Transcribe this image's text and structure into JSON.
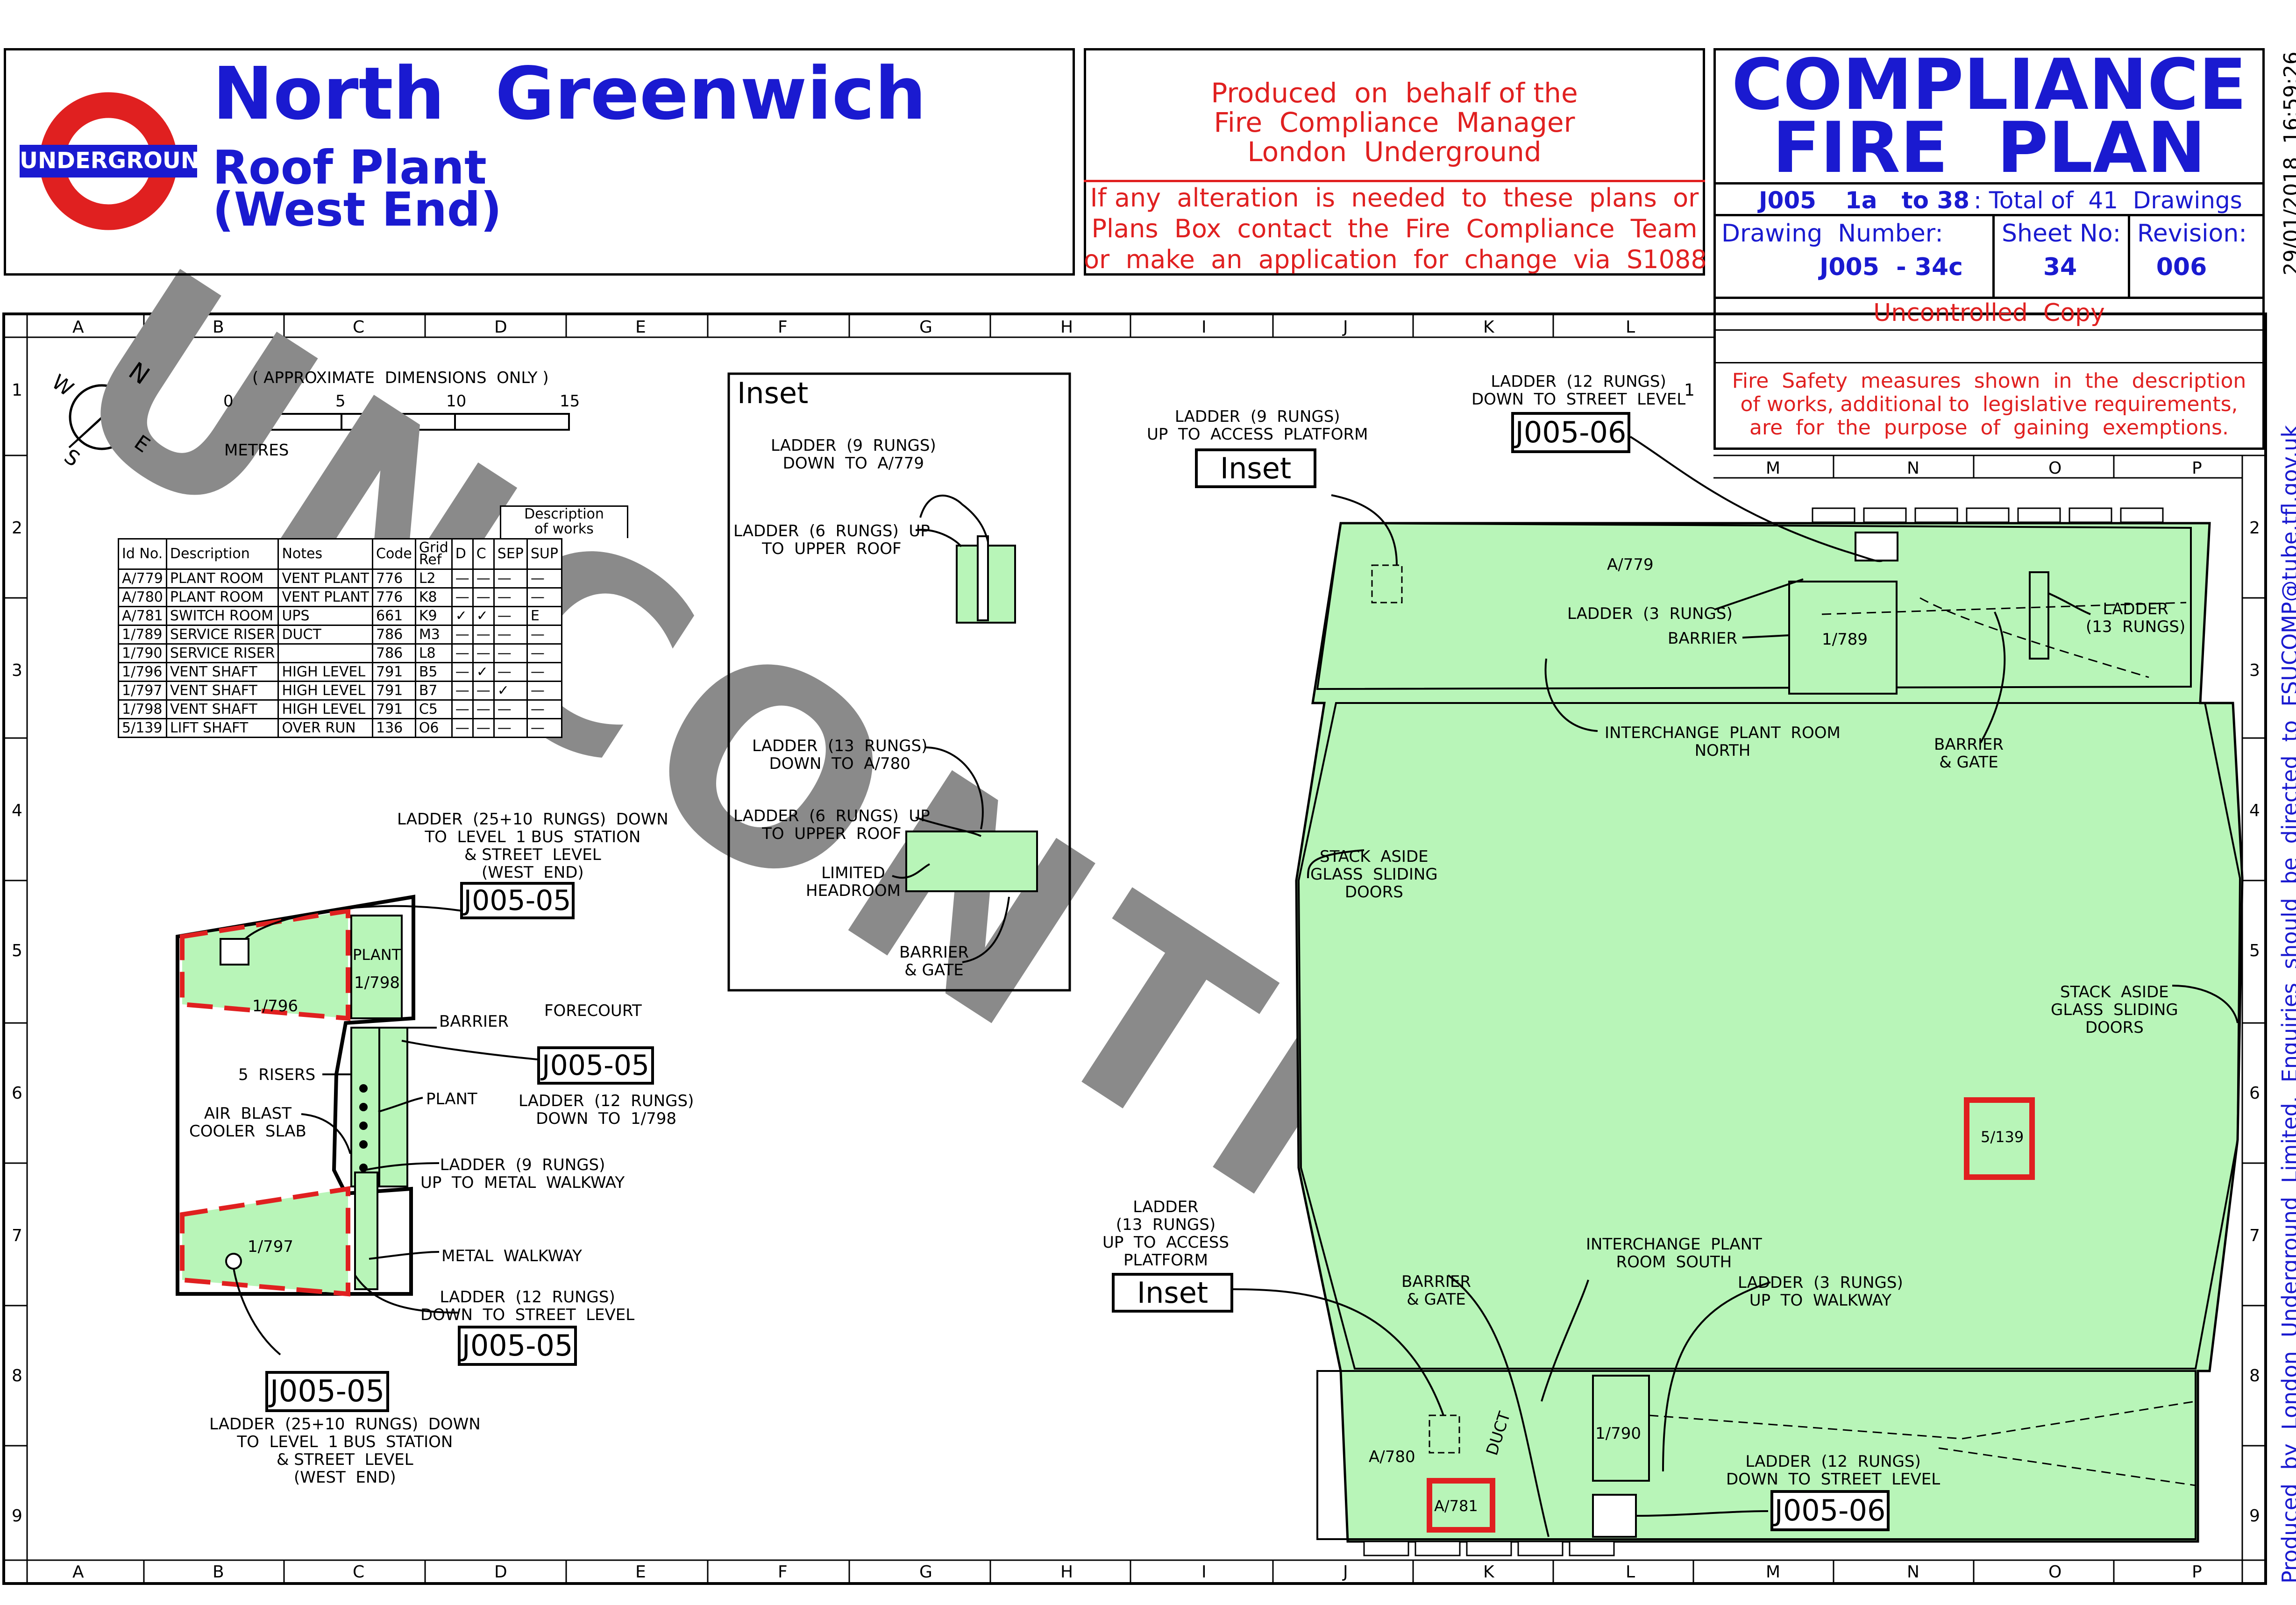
{
  "header": {
    "roundel_text": "UNDERGROUND",
    "station": "North  Greenwich",
    "subtitle_line1": "Roof Plant",
    "subtitle_line2": "(West End)",
    "produced_line1": "Produced  on  behalf of the",
    "produced_line2": "Fire  Compliance  Manager",
    "produced_line3": "London  Underground",
    "alteration_line1": "If any  alteration  is  needed  to  these  plans  or",
    "alteration_line2": "Plans  Box  contact  the  Fire  Compliance  Team",
    "alteration_line3": "or  make  an  application  for  change  via  S1088",
    "plan_title_line1": "COMPLIANCE",
    "plan_title_line2": "FIRE  PLAN",
    "series_code": "J005",
    "series_range": "1a   to 38",
    "series_total": ": Total of  41  Drawings",
    "drawing_number_label": "Drawing  Number:",
    "drawing_number": "J005  - 34c",
    "sheet_label": "Sheet No:",
    "sheet_no": "34",
    "revision_label": "Revision:",
    "revision": "006",
    "uncontrolled": "Uncontrolled  Copy",
    "fire_safety_line1": "Fire  Safety  measures  shown  in  the  description",
    "fire_safety_line2": "of works, additional to  legislative requirements,",
    "fire_safety_line3": "are  for  the  purpose  of  gaining  exemptions.",
    "timestamp": "29/01/2018  16:59:26",
    "side_note": "Produced  by  London  Underground  Limited.  Enquiries  should  be  directed  to  FSUCOMP@tube.tfl.gov.uk"
  },
  "grid": {
    "columns": [
      "A",
      "B",
      "C",
      "D",
      "E",
      "F",
      "G",
      "H",
      "I",
      "J",
      "K",
      "L"
    ],
    "right_columns": [
      "M",
      "N",
      "O",
      "P"
    ],
    "rows": [
      "1",
      "2",
      "3",
      "4",
      "5",
      "6",
      "7",
      "8",
      "9"
    ]
  },
  "scale": {
    "title": "( APPROXIMATE  DIMENSIONS  ONLY )",
    "ticks": [
      "0",
      "5",
      "10",
      "15"
    ],
    "unit": "METRES"
  },
  "compass": {
    "n": "N",
    "s": "S",
    "e": "E",
    "w": "W"
  },
  "table": {
    "description_header": "Description\nof works",
    "headers": [
      "Id No.",
      "Description",
      "Notes",
      "Code",
      "Grid\nRef",
      "D",
      "C",
      "SEP",
      "SUP"
    ],
    "rows": [
      [
        "A/779",
        "PLANT  ROOM",
        "VENT  PLANT",
        "776",
        "L2",
        "—",
        "—",
        "—",
        "—"
      ],
      [
        "A/780",
        "PLANT  ROOM",
        "VENT  PLANT",
        "776",
        "K8",
        "—",
        "—",
        "—",
        "—"
      ],
      [
        "A/781",
        "SWITCH  ROOM",
        "UPS",
        "661",
        "K9",
        "✓",
        "✓",
        "—",
        "E"
      ],
      [
        "1/789",
        "SERVICE  RISER",
        "DUCT",
        "786",
        "M3",
        "—",
        "—",
        "—",
        "—"
      ],
      [
        "1/790",
        "SERVICE  RISER",
        "",
        "786",
        "L8",
        "—",
        "—",
        "—",
        "—"
      ],
      [
        "1/796",
        "VENT  SHAFT",
        "HIGH  LEVEL",
        "791",
        "B5",
        "—",
        "✓",
        "—",
        "—"
      ],
      [
        "1/797",
        "VENT  SHAFT",
        "HIGH  LEVEL",
        "791",
        "B7",
        "—",
        "—",
        "✓",
        "—"
      ],
      [
        "1/798",
        "VENT  SHAFT",
        "HIGH  LEVEL",
        "791",
        "C5",
        "—",
        "—",
        "—",
        "—"
      ],
      [
        "5/139",
        "LIFT  SHAFT",
        "OVER  RUN",
        "136",
        "O6",
        "—",
        "—",
        "—",
        "—"
      ]
    ]
  },
  "watermark": "UNCONTI",
  "inset": {
    "title": "Inset",
    "l1": "LADDER  (9  RUNGS)\nDOWN  TO  A/779",
    "l2": "LADDER  (6  RUNGS)  UP\nTO  UPPER  ROOF",
    "l3": "LADDER  (13  RUNGS)\nDOWN  TO  A/780",
    "l4": "LADDER  (6  RUNGS)  UP\nTO  UPPER  ROOF",
    "l5": "LIMITED\nHEADROOM",
    "l6": "BARRIER\n& GATE"
  },
  "left_plan": {
    "ladder_top": "LADDER  (25+10  RUNGS)  DOWN\nTO  LEVEL  1 BUS  STATION\n& STREET  LEVEL\n(WEST  END)",
    "ref_top": "J005-05",
    "room_796": "1/796",
    "plant": "PLANT",
    "room_798": "1/798",
    "barrier": "BARRIER",
    "forecourt": "FORECOURT",
    "ref_mid": "J005-05",
    "ladder_12": "LADDER  (12  RUNGS)\nDOWN  TO  1/798",
    "risers": "5  RISERS",
    "plant2": "PLANT",
    "air_blast": "AIR  BLAST\nCOOLER  SLAB",
    "ladder_9": "LADDER  (9  RUNGS)\nUP  TO  METAL  WALKWAY",
    "room_797": "1/797",
    "metal_walkway": "METAL  WALKWAY",
    "ladder_12b": "LADDER  (12  RUNGS)\nDOWN  TO  STREET  LEVEL",
    "ref_bottom_right": "J005-05",
    "ref_bottom": "J005-05",
    "ladder_bottom": "LADDER  (25+10  RUNGS)  DOWN\nTO  LEVEL  1 BUS  STATION\n& STREET  LEVEL\n(WEST  END)"
  },
  "right_plan": {
    "ladder_9_top": "LADDER  (9  RUNGS)\nUP  TO  ACCESS  PLATFORM",
    "inset_ref_top": "Inset",
    "ladder_12_top": "LADDER  (12  RUNGS)\nDOWN  TO  STREET  LEVEL",
    "ref_top": "J005-06",
    "a779": "A/779",
    "ladder_3": "LADDER  (3  RUNGS)",
    "barrier": "BARRIER",
    "r1789": "1/789",
    "ladder_13": "LADDER\n(13  RUNGS)",
    "interchange_north": "INTERCHANGE  PLANT  ROOM\nNORTH",
    "barrier_gate_n": "BARRIER\n& GATE",
    "stack_left": "STACK  ASIDE\nGLASS  SLIDING\nDOORS",
    "stack_right": "STACK  ASIDE\nGLASS  SLIDING\nDOORS",
    "lift": "5/139",
    "ladder_13_access": "LADDER\n(13  RUNGS)\nUP  TO  ACCESS\nPLATFORM",
    "inset_ref_bottom": "Inset",
    "interchange_south": "INTERCHANGE  PLANT\nROOM  SOUTH",
    "barrier_gate_s": "BARRIER\n& GATE",
    "ladder_3_walk": "LADDER  (3  RUNGS)\nUP  TO  WALKWAY",
    "a780": "A/780",
    "duct": "DUCT",
    "r1790": "1/790",
    "ladder_12_bottom": "LADDER  (12  RUNGS)\nDOWN  TO  STREET  LEVEL",
    "a781": "A/781",
    "ref_bottom": "J005-06"
  },
  "colors": {
    "blue": "#1a1ad0",
    "red": "#e02020",
    "room_fill": "#b8f5b8",
    "watermark": "#8a8a8a"
  }
}
